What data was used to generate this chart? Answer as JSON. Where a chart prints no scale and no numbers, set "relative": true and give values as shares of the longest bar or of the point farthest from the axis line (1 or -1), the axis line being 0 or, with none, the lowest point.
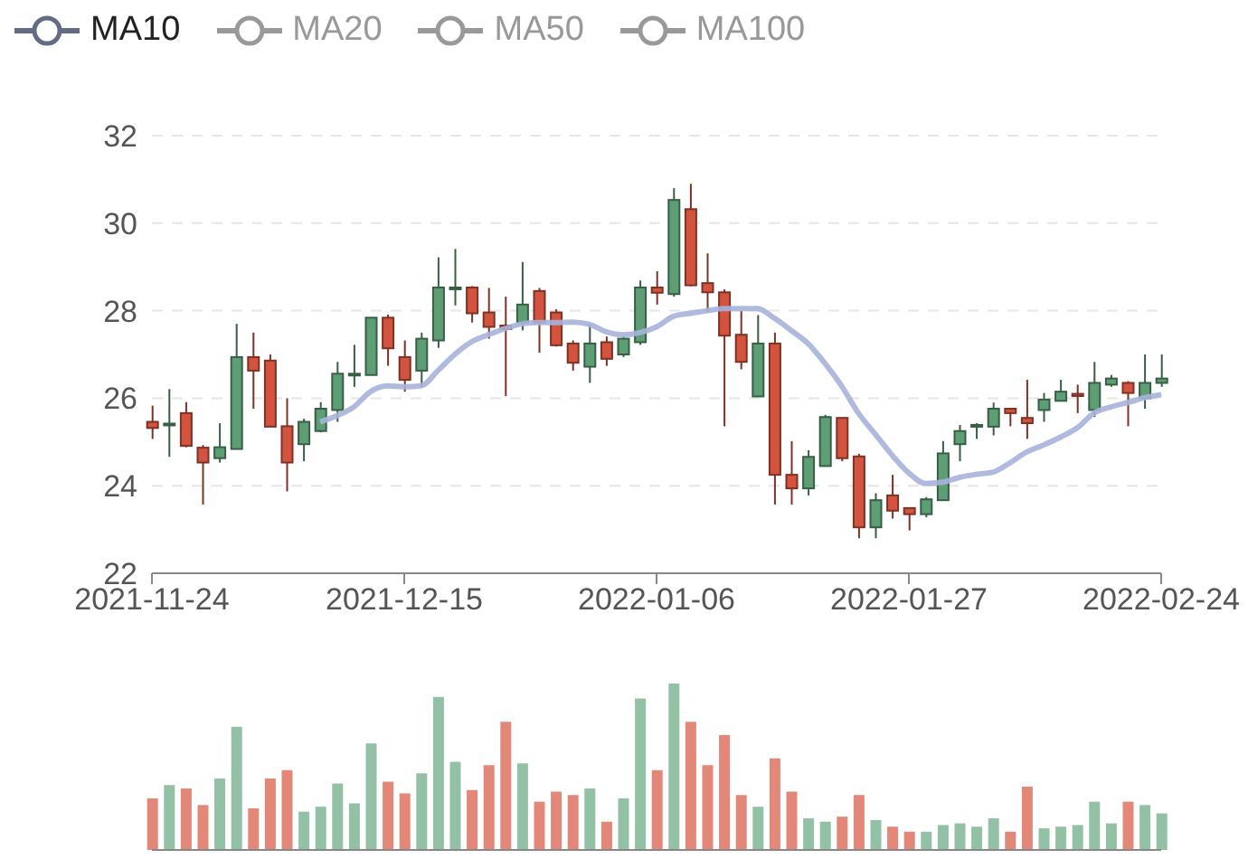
{
  "chart_data": [
    {
      "type": "candlestick",
      "categories": [
        "2021-11-24",
        null,
        null,
        null,
        null,
        null,
        null,
        null,
        null,
        null,
        null,
        null,
        null,
        null,
        null,
        "2021-12-15",
        null,
        null,
        null,
        null,
        null,
        null,
        null,
        null,
        null,
        null,
        null,
        null,
        null,
        null,
        "2022-01-06",
        null,
        null,
        null,
        null,
        null,
        null,
        null,
        null,
        null,
        null,
        null,
        null,
        null,
        null,
        "2022-01-27",
        null,
        null,
        null,
        null,
        null,
        null,
        null,
        null,
        null,
        null,
        null,
        null,
        null,
        null,
        "2022-02-24"
      ],
      "ohlc": [
        [
          25.46,
          25.83,
          25.07,
          25.32
        ],
        [
          25.38,
          26.21,
          24.66,
          25.42
        ],
        [
          25.66,
          25.91,
          24.88,
          24.91
        ],
        [
          24.87,
          24.93,
          23.57,
          24.53
        ],
        [
          24.63,
          25.43,
          24.53,
          24.88
        ],
        [
          24.84,
          27.7,
          24.84,
          26.94
        ],
        [
          26.94,
          27.5,
          25.76,
          26.63
        ],
        [
          26.86,
          27.0,
          25.35,
          25.35
        ],
        [
          25.36,
          26.0,
          23.87,
          24.53
        ],
        [
          24.95,
          25.53,
          24.56,
          25.46
        ],
        [
          25.25,
          25.91,
          25.22,
          25.76
        ],
        [
          25.73,
          26.83,
          25.46,
          26.56
        ],
        [
          26.53,
          27.22,
          26.26,
          26.56
        ],
        [
          26.53,
          27.84,
          26.53,
          27.84
        ],
        [
          27.84,
          27.91,
          26.74,
          27.14
        ],
        [
          26.94,
          27.32,
          26.15,
          26.42
        ],
        [
          26.63,
          27.5,
          26.26,
          27.36
        ],
        [
          27.32,
          29.22,
          27.15,
          28.53
        ],
        [
          28.49,
          29.41,
          28.12,
          28.53
        ],
        [
          28.53,
          28.56,
          27.73,
          27.94
        ],
        [
          27.96,
          28.52,
          27.36,
          27.63
        ],
        [
          27.66,
          28.32,
          26.05,
          27.58
        ],
        [
          27.73,
          29.11,
          27.55,
          28.14
        ],
        [
          28.45,
          28.52,
          27.04,
          27.73
        ],
        [
          27.96,
          28.03,
          27.18,
          27.21
        ],
        [
          27.25,
          27.32,
          26.63,
          26.81
        ],
        [
          26.72,
          27.69,
          26.35,
          27.25
        ],
        [
          27.28,
          27.41,
          26.74,
          26.9
        ],
        [
          27.0,
          27.41,
          26.94,
          27.36
        ],
        [
          27.28,
          28.69,
          27.22,
          28.53
        ],
        [
          28.53,
          28.9,
          28.14,
          28.41
        ],
        [
          28.38,
          30.8,
          28.32,
          30.53
        ],
        [
          30.32,
          30.9,
          28.56,
          28.58
        ],
        [
          28.63,
          29.31,
          27.96,
          28.42
        ],
        [
          28.42,
          28.49,
          25.36,
          27.43
        ],
        [
          27.45,
          28.0,
          26.66,
          26.83
        ],
        [
          26.04,
          27.9,
          26.04,
          27.25
        ],
        [
          27.25,
          27.5,
          23.57,
          24.25
        ],
        [
          24.25,
          25.02,
          23.57,
          23.94
        ],
        [
          23.94,
          24.81,
          23.78,
          24.66
        ],
        [
          24.45,
          25.62,
          24.45,
          25.57
        ],
        [
          25.55,
          25.55,
          24.56,
          24.63
        ],
        [
          24.67,
          24.73,
          22.8,
          23.05
        ],
        [
          23.05,
          23.83,
          22.8,
          23.67
        ],
        [
          23.78,
          24.25,
          23.25,
          23.43
        ],
        [
          23.49,
          23.49,
          22.98,
          23.35
        ],
        [
          23.35,
          23.74,
          23.28,
          23.69
        ],
        [
          23.67,
          25.02,
          23.67,
          24.74
        ],
        [
          24.95,
          25.39,
          24.56,
          25.25
        ],
        [
          25.37,
          25.43,
          25.07,
          25.39
        ],
        [
          25.35,
          25.9,
          25.15,
          25.76
        ],
        [
          25.76,
          25.76,
          25.36,
          25.66
        ],
        [
          25.55,
          26.42,
          25.07,
          25.43
        ],
        [
          25.73,
          26.12,
          25.46,
          25.97
        ],
        [
          25.94,
          26.42,
          25.94,
          26.15
        ],
        [
          26.1,
          26.31,
          25.66,
          26.05
        ],
        [
          25.73,
          26.83,
          25.57,
          26.35
        ],
        [
          26.31,
          26.53,
          26.26,
          26.45
        ],
        [
          26.35,
          26.39,
          25.36,
          26.12
        ],
        [
          26.0,
          27.0,
          25.76,
          26.35
        ],
        [
          26.35,
          27.0,
          26.26,
          26.45
        ]
      ],
      "colors": [
        "#d2533e",
        "#5e9e74",
        "#d2533e",
        "#d2533e",
        "#5e9e74",
        "#5e9e74",
        "#d2533e",
        "#d2533e",
        "#d2533e",
        "#5e9e74",
        "#5e9e74",
        "#5e9e74",
        "#5e9e74",
        "#5e9e74",
        "#d2533e",
        "#d2533e",
        "#5e9e74",
        "#5e9e74",
        "#5e9e74",
        "#d2533e",
        "#d2533e",
        "#d2533e",
        "#5e9e74",
        "#d2533e",
        "#d2533e",
        "#d2533e",
        "#5e9e74",
        "#d2533e",
        "#5e9e74",
        "#5e9e74",
        "#d2533e",
        "#5e9e74",
        "#d2533e",
        "#d2533e",
        "#d2533e",
        "#d2533e",
        "#5e9e74",
        "#d2533e",
        "#d2533e",
        "#5e9e74",
        "#5e9e74",
        "#d2533e",
        "#d2533e",
        "#5e9e74",
        "#d2533e",
        "#d2533e",
        "#5e9e74",
        "#5e9e74",
        "#5e9e74",
        "#5e9e74",
        "#5e9e74",
        "#d2533e",
        "#d2533e",
        "#5e9e74",
        "#5e9e74",
        "#d2533e",
        "#5e9e74",
        "#5e9e74",
        "#d2533e",
        "#5e9e74",
        "#5e9e74"
      ],
      "series": [
        {
          "name": "MA10",
          "type": "line",
          "color": "#a7b3dc",
          "values": [
            null,
            null,
            null,
            null,
            null,
            null,
            null,
            null,
            null,
            null,
            25.46,
            25.6,
            25.8,
            26.15,
            26.28,
            26.26,
            26.28,
            26.63,
            27.0,
            27.29,
            27.45,
            27.59,
            27.7,
            27.73,
            27.73,
            27.74,
            27.69,
            27.52,
            27.45,
            27.5,
            27.63,
            27.87,
            27.94,
            28.0,
            28.05,
            28.05,
            28.05,
            27.83,
            27.55,
            27.25,
            26.8,
            26.28,
            25.66,
            25.18,
            24.7,
            24.29,
            24.05,
            24.08,
            24.19,
            24.26,
            24.31,
            24.52,
            24.77,
            24.93,
            25.11,
            25.32,
            25.66,
            25.8,
            25.9,
            26.01,
            26.08
          ]
        },
        {
          "name": "MA20",
          "type": "line",
          "color": "#999999",
          "values": [
            null,
            null,
            null,
            null,
            null,
            null,
            null,
            null,
            null,
            null,
            null,
            null,
            null,
            null,
            null,
            null,
            null,
            null,
            null,
            null,
            null,
            null,
            null,
            null,
            null,
            null,
            null,
            null,
            null,
            null,
            null,
            null,
            null,
            null,
            null,
            null,
            null,
            null,
            null,
            null,
            null,
            null,
            null,
            null,
            null,
            null,
            null,
            null,
            null,
            null,
            null,
            null,
            null,
            null,
            null,
            null,
            null,
            null,
            null,
            null,
            null
          ]
        },
        {
          "name": "MA50",
          "type": "line",
          "color": "#999999",
          "values": [
            null,
            null,
            null,
            null,
            null,
            null,
            null,
            null,
            null,
            null,
            null,
            null,
            null,
            null,
            null,
            null,
            null,
            null,
            null,
            null,
            null,
            null,
            null,
            null,
            null,
            null,
            null,
            null,
            null,
            null,
            null,
            null,
            null,
            null,
            null,
            null,
            null,
            null,
            null,
            null,
            null,
            null,
            null,
            null,
            null,
            null,
            null,
            null,
            null,
            null,
            null,
            null,
            null,
            null,
            null,
            null,
            null,
            null,
            null,
            null,
            null
          ]
        },
        {
          "name": "MA100",
          "type": "line",
          "color": "#999999",
          "values": [
            null,
            null,
            null,
            null,
            null,
            null,
            null,
            null,
            null,
            null,
            null,
            null,
            null,
            null,
            null,
            null,
            null,
            null,
            null,
            null,
            null,
            null,
            null,
            null,
            null,
            null,
            null,
            null,
            null,
            null,
            null,
            null,
            null,
            null,
            null,
            null,
            null,
            null,
            null,
            null,
            null,
            null,
            null,
            null,
            null,
            null,
            null,
            null,
            null,
            null,
            null,
            null,
            null,
            null,
            null,
            null,
            null,
            null,
            null,
            null,
            null
          ]
        }
      ],
      "ylim": [
        22,
        32
      ],
      "yticks": [
        22,
        24,
        26,
        28,
        30,
        32
      ],
      "grid": "y",
      "legend": "top left"
    },
    {
      "type": "bar",
      "relative": true,
      "categories": [
        null,
        null,
        null,
        null,
        null,
        null,
        null,
        null,
        null,
        null,
        null,
        null,
        null,
        null,
        null,
        null,
        null,
        null,
        null,
        null,
        null,
        null,
        null,
        null,
        null,
        null,
        null,
        null,
        null,
        null,
        null,
        null,
        null,
        null,
        null,
        null,
        null,
        null,
        null,
        null,
        null,
        null,
        null,
        null,
        null,
        null,
        null,
        null,
        null,
        null,
        null,
        null,
        null,
        null,
        null,
        null,
        null,
        null,
        null,
        null,
        null
      ],
      "values": [
        0.31,
        0.39,
        0.37,
        0.27,
        0.43,
        0.74,
        0.25,
        0.43,
        0.48,
        0.23,
        0.26,
        0.4,
        0.28,
        0.64,
        0.41,
        0.34,
        0.46,
        0.92,
        0.53,
        0.36,
        0.51,
        0.77,
        0.52,
        0.29,
        0.35,
        0.33,
        0.37,
        0.17,
        0.31,
        0.91,
        0.48,
        1,
        0.77,
        0.51,
        0.69,
        0.33,
        0.26,
        0.55,
        0.35,
        0.19,
        0.17,
        0.2,
        0.33,
        0.18,
        0.14,
        0.11,
        0.11,
        0.15,
        0.16,
        0.14,
        0.19,
        0.11,
        0.38,
        0.13,
        0.14,
        0.15,
        0.29,
        0.16,
        0.29,
        0.27,
        0.22
      ],
      "colors": [
        "#e38878",
        "#93c1a5",
        "#e38878",
        "#e38878",
        "#93c1a5",
        "#93c1a5",
        "#e38878",
        "#e38878",
        "#e38878",
        "#93c1a5",
        "#93c1a5",
        "#93c1a5",
        "#93c1a5",
        "#93c1a5",
        "#e38878",
        "#e38878",
        "#93c1a5",
        "#93c1a5",
        "#93c1a5",
        "#e38878",
        "#e38878",
        "#e38878",
        "#93c1a5",
        "#e38878",
        "#e38878",
        "#e38878",
        "#93c1a5",
        "#e38878",
        "#93c1a5",
        "#93c1a5",
        "#e38878",
        "#93c1a5",
        "#e38878",
        "#e38878",
        "#e38878",
        "#e38878",
        "#93c1a5",
        "#e38878",
        "#e38878",
        "#93c1a5",
        "#93c1a5",
        "#e38878",
        "#e38878",
        "#93c1a5",
        "#e38878",
        "#e38878",
        "#93c1a5",
        "#93c1a5",
        "#93c1a5",
        "#93c1a5",
        "#93c1a5",
        "#e38878",
        "#e38878",
        "#93c1a5",
        "#93c1a5",
        "#93c1a5",
        "#93c1a5",
        "#93c1a5",
        "#e38878",
        "#93c1a5",
        "#93c1a5"
      ]
    }
  ]
}
